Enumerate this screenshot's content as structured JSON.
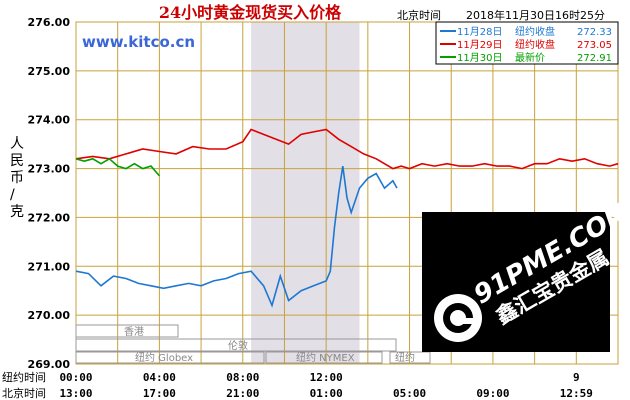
{
  "header": {
    "title": "24小时黄金现货买入价格",
    "timezone_label": "北京时间",
    "timestamp": "2018年11月30日16时25分"
  },
  "watermarks": {
    "site": "www.kitco.cn",
    "brand_en": "91PME.COM",
    "brand_cn": "鑫汇宝贵金属"
  },
  "y_axis_label": "人民币/克",
  "row_labels": {
    "ny": "纽约时间",
    "bj": "北京时间"
  },
  "market_labels": {
    "hk": "香港",
    "ldn": "伦敦",
    "globex": "纽约 Globex",
    "nymex": "纽约 NYMEX",
    "nymex2": "纽约"
  },
  "legend": [
    {
      "date": "11月28日",
      "label": "纽约收盘",
      "value": "272.33",
      "color": "#1e78d2"
    },
    {
      "date": "11月29日",
      "label": "纽约收盘",
      "value": "273.05",
      "color": "#e00000"
    },
    {
      "date": "11月30日",
      "label": "最新价",
      "value": "272.91",
      "color": "#00a000"
    }
  ],
  "chart_data": {
    "type": "line",
    "title": "24小时黄金现货买入价格",
    "ylabel": "人民币/克",
    "ylim": [
      269,
      276
    ],
    "xlim": [
      0,
      13
    ],
    "yticks": [
      "269.00",
      "270.00",
      "271.00",
      "272.00",
      "273.00",
      "274.00",
      "275.00",
      "276.00"
    ],
    "x_ticks_ny": [
      "00:00",
      "04:00",
      "08:00",
      "12:00",
      "9"
    ],
    "x_ticks_ny_pos": [
      0,
      2,
      4,
      6,
      12
    ],
    "x_ticks_bj": [
      "13:00",
      "17:00",
      "21:00",
      "01:00",
      "05:00",
      "09:00",
      "12:59"
    ],
    "x_ticks_bj_pos": [
      0,
      2,
      4,
      6,
      8,
      10,
      12
    ],
    "shaded_region": [
      4.2,
      6.8
    ],
    "grid": true,
    "series": [
      {
        "name": "11月28日",
        "color": "#1e78d2",
        "x": [
          0,
          0.3,
          0.6,
          0.9,
          1.2,
          1.5,
          1.8,
          2.1,
          2.4,
          2.7,
          3.0,
          3.3,
          3.6,
          3.9,
          4.2,
          4.5,
          4.7,
          4.9,
          5.1,
          5.4,
          5.7,
          6.0,
          6.1,
          6.2,
          6.3,
          6.4,
          6.5,
          6.6,
          6.8,
          7.0,
          7.2,
          7.4,
          7.6,
          7.7
        ],
        "y": [
          270.9,
          270.85,
          270.6,
          270.8,
          270.75,
          270.65,
          270.6,
          270.55,
          270.6,
          270.65,
          270.6,
          270.7,
          270.75,
          270.85,
          270.9,
          270.6,
          270.2,
          270.8,
          270.3,
          270.5,
          270.6,
          270.7,
          270.9,
          271.8,
          272.5,
          273.05,
          272.4,
          272.1,
          272.6,
          272.8,
          272.9,
          272.6,
          272.75,
          272.6
        ]
      },
      {
        "name": "11月29日",
        "color": "#e00000",
        "x": [
          0,
          0.4,
          0.8,
          1.2,
          1.6,
          2.0,
          2.4,
          2.8,
          3.2,
          3.6,
          4.0,
          4.2,
          4.5,
          4.8,
          5.1,
          5.4,
          5.7,
          6.0,
          6.3,
          6.6,
          6.9,
          7.2,
          7.4,
          7.6,
          7.8,
          8.0,
          8.3,
          8.6,
          8.9,
          9.2,
          9.5,
          9.8,
          10.1,
          10.4,
          10.7,
          11.0,
          11.3,
          11.6,
          11.9,
          12.2,
          12.5,
          12.8,
          13.0
        ],
        "y": [
          273.2,
          273.25,
          273.2,
          273.3,
          273.4,
          273.35,
          273.3,
          273.45,
          273.4,
          273.4,
          273.55,
          273.8,
          273.7,
          273.6,
          273.5,
          273.7,
          273.75,
          273.8,
          273.6,
          273.45,
          273.3,
          273.2,
          273.1,
          273.0,
          273.05,
          273.0,
          273.1,
          273.05,
          273.1,
          273.05,
          273.05,
          273.1,
          273.05,
          273.05,
          273.0,
          273.1,
          273.1,
          273.2,
          273.15,
          273.2,
          273.1,
          273.05,
          273.1
        ]
      },
      {
        "name": "11月30日",
        "color": "#00a000",
        "x": [
          0,
          0.2,
          0.4,
          0.6,
          0.8,
          1.0,
          1.2,
          1.4,
          1.6,
          1.8,
          2.0
        ],
        "y": [
          273.2,
          273.15,
          273.2,
          273.1,
          273.2,
          273.05,
          273.0,
          273.1,
          273.0,
          273.05,
          272.85
        ]
      }
    ]
  }
}
